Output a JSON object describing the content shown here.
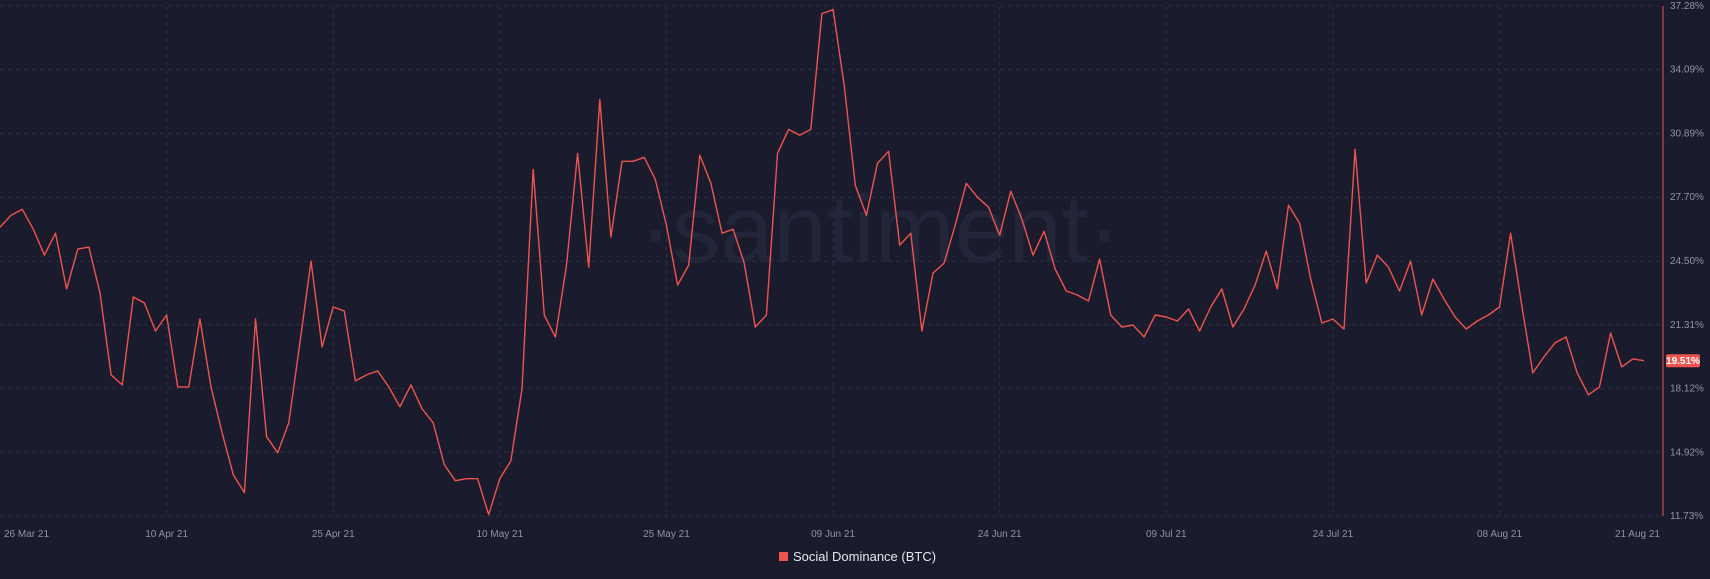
{
  "watermark": "·santiment·",
  "chart_data": {
    "type": "line",
    "series_color": "#ef5350",
    "ylim": [
      11.73,
      37.28
    ],
    "y_ticks": [
      "37.28%",
      "34.09%",
      "30.89%",
      "27.70%",
      "24.50%",
      "21.31%",
      "18.12%",
      "14.92%",
      "11.73%"
    ],
    "y_tick_values": [
      37.28,
      34.09,
      30.89,
      27.7,
      24.5,
      21.31,
      18.12,
      14.92,
      11.73
    ],
    "x_ticks": [
      "26 Mar 21",
      "10 Apr 21",
      "25 Apr 21",
      "10 May 21",
      "25 May 21",
      "09 Jun 21",
      "24 Jun 21",
      "09 Jul 21",
      "24 Jul 21",
      "08 Aug 21",
      "21 Aug 21"
    ],
    "x_tick_dates": [
      "2021-03-26",
      "2021-04-10",
      "2021-04-25",
      "2021-05-10",
      "2021-05-25",
      "2021-06-09",
      "2021-06-24",
      "2021-07-09",
      "2021-07-24",
      "2021-08-08",
      "2021-08-21"
    ],
    "x_start": "2021-03-26",
    "x_end": "2021-08-22",
    "last_value_label": "19.51%",
    "series": [
      {
        "name": "Social Dominance (BTC)",
        "x": [
          "2021-03-26",
          "2021-03-27",
          "2021-03-28",
          "2021-03-29",
          "2021-03-30",
          "2021-03-31",
          "2021-04-01",
          "2021-04-02",
          "2021-04-03",
          "2021-04-04",
          "2021-04-05",
          "2021-04-06",
          "2021-04-07",
          "2021-04-08",
          "2021-04-09",
          "2021-04-10",
          "2021-04-11",
          "2021-04-12",
          "2021-04-13",
          "2021-04-14",
          "2021-04-15",
          "2021-04-16",
          "2021-04-17",
          "2021-04-18",
          "2021-04-19",
          "2021-04-20",
          "2021-04-21",
          "2021-04-22",
          "2021-04-23",
          "2021-04-24",
          "2021-04-25",
          "2021-04-26",
          "2021-04-27",
          "2021-04-28",
          "2021-04-29",
          "2021-04-30",
          "2021-05-01",
          "2021-05-02",
          "2021-05-03",
          "2021-05-04",
          "2021-05-05",
          "2021-05-06",
          "2021-05-07",
          "2021-05-08",
          "2021-05-09",
          "2021-05-10",
          "2021-05-11",
          "2021-05-12",
          "2021-05-13",
          "2021-05-14",
          "2021-05-15",
          "2021-05-16",
          "2021-05-17",
          "2021-05-18",
          "2021-05-19",
          "2021-05-20",
          "2021-05-21",
          "2021-05-22",
          "2021-05-23",
          "2021-05-24",
          "2021-05-25",
          "2021-05-26",
          "2021-05-27",
          "2021-05-28",
          "2021-05-29",
          "2021-05-30",
          "2021-05-31",
          "2021-06-01",
          "2021-06-02",
          "2021-06-03",
          "2021-06-04",
          "2021-06-05",
          "2021-06-06",
          "2021-06-07",
          "2021-06-08",
          "2021-06-09",
          "2021-06-10",
          "2021-06-11",
          "2021-06-12",
          "2021-06-13",
          "2021-06-14",
          "2021-06-15",
          "2021-06-16",
          "2021-06-17",
          "2021-06-18",
          "2021-06-19",
          "2021-06-20",
          "2021-06-21",
          "2021-06-22",
          "2021-06-23",
          "2021-06-24",
          "2021-06-25",
          "2021-06-26",
          "2021-06-27",
          "2021-06-28",
          "2021-06-29",
          "2021-06-30",
          "2021-07-01",
          "2021-07-02",
          "2021-07-03",
          "2021-07-04",
          "2021-07-05",
          "2021-07-06",
          "2021-07-07",
          "2021-07-08",
          "2021-07-09",
          "2021-07-10",
          "2021-07-11",
          "2021-07-12",
          "2021-07-13",
          "2021-07-14",
          "2021-07-15",
          "2021-07-16",
          "2021-07-17",
          "2021-07-18",
          "2021-07-19",
          "2021-07-20",
          "2021-07-21",
          "2021-07-22",
          "2021-07-23",
          "2021-07-24",
          "2021-07-25",
          "2021-07-26",
          "2021-07-27",
          "2021-07-28",
          "2021-07-29",
          "2021-07-30",
          "2021-07-31",
          "2021-08-01",
          "2021-08-02",
          "2021-08-03",
          "2021-08-04",
          "2021-08-05",
          "2021-08-06",
          "2021-08-07",
          "2021-08-08",
          "2021-08-09",
          "2021-08-10",
          "2021-08-11",
          "2021-08-12",
          "2021-08-13",
          "2021-08-14",
          "2021-08-15",
          "2021-08-16",
          "2021-08-17",
          "2021-08-18",
          "2021-08-19",
          "2021-08-20",
          "2021-08-21"
        ],
        "values": [
          26.2,
          26.8,
          27.1,
          26.1,
          24.8,
          25.9,
          23.1,
          25.1,
          25.2,
          22.9,
          18.8,
          18.3,
          22.7,
          22.4,
          21.0,
          21.8,
          18.2,
          18.2,
          21.6,
          18.2,
          15.9,
          13.8,
          12.9,
          21.6,
          15.7,
          14.9,
          16.4,
          20.4,
          24.5,
          20.2,
          22.2,
          22.0,
          18.5,
          18.8,
          19.0,
          18.2,
          17.2,
          18.3,
          17.1,
          16.4,
          14.3,
          13.5,
          13.6,
          13.6,
          11.8,
          13.6,
          14.5,
          18.1,
          29.1,
          21.8,
          20.7,
          24.3,
          29.9,
          24.2,
          32.6,
          25.7,
          29.5,
          29.5,
          29.7,
          28.6,
          26.3,
          23.3,
          24.3,
          29.8,
          28.4,
          25.9,
          26.1,
          24.4,
          21.2,
          21.8,
          29.9,
          31.1,
          30.8,
          31.1,
          36.9,
          37.1,
          33.3,
          28.3,
          26.8,
          29.4,
          30.0,
          25.3,
          25.9,
          21.0,
          23.9,
          24.4,
          26.3,
          28.4,
          27.7,
          27.2,
          25.8,
          28.0,
          26.6,
          24.8,
          26.0,
          24.1,
          23.0,
          22.8,
          22.5,
          24.6,
          21.8,
          21.2,
          21.3,
          20.7,
          21.8,
          21.7,
          21.5,
          22.1,
          21.0,
          22.2,
          23.1,
          21.2,
          22.1,
          23.3,
          25.0,
          23.1,
          27.3,
          26.4,
          23.6,
          21.4,
          21.6,
          21.1,
          30.1,
          23.4,
          24.8,
          24.2,
          23.0,
          24.5,
          21.8,
          23.6,
          22.6,
          21.7,
          21.1,
          21.5,
          21.8,
          22.2,
          25.9,
          22.3,
          18.9,
          19.7,
          20.4,
          20.7,
          18.9,
          17.8,
          18.2,
          20.9,
          19.2,
          19.6,
          19.51
        ]
      }
    ]
  },
  "legend": {
    "label": "Social Dominance (BTC)",
    "color": "#ef5350"
  }
}
